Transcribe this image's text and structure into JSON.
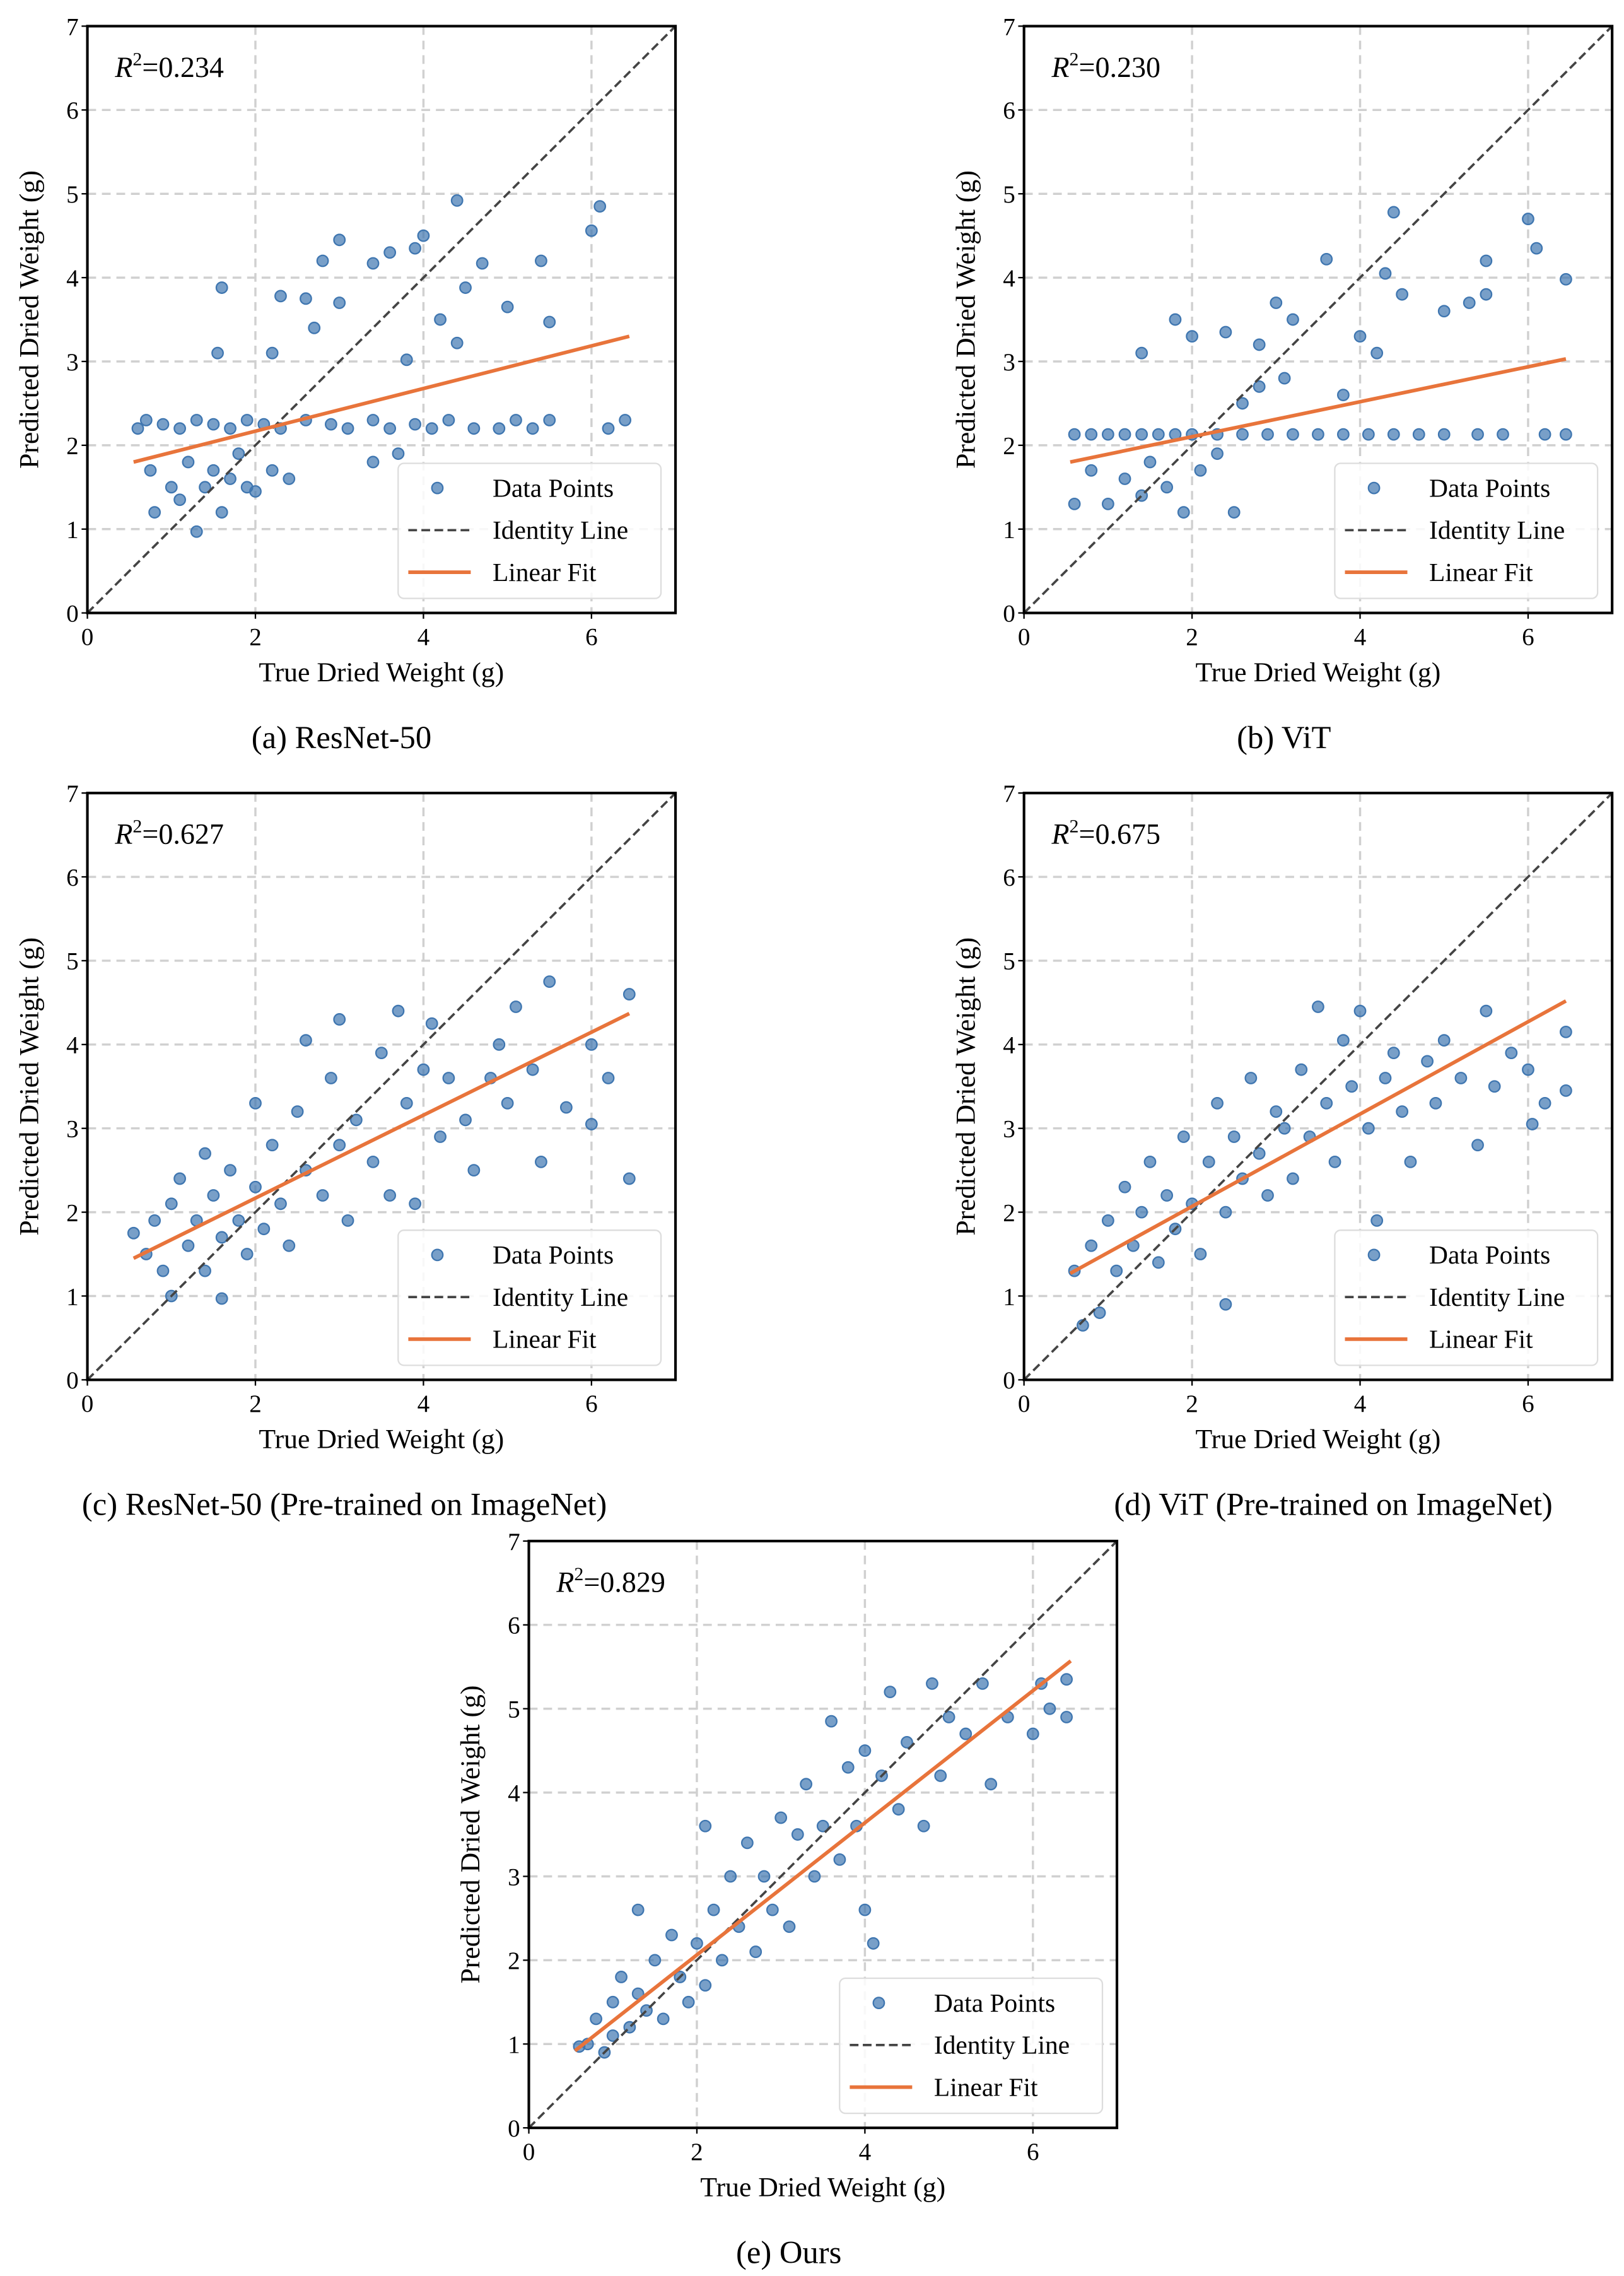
{
  "colors": {
    "points": "#3f76b0",
    "identity": "#444444",
    "fit": "#e8743b",
    "grid": "#d0d0d0"
  },
  "legend": {
    "points": "Data Points",
    "identity": "Identity Line",
    "fit": "Linear Fit"
  },
  "chart_data": [
    {
      "type": "scatter",
      "caption": "(a) ResNet-50",
      "r2_label": "R",
      "r2_sup": "2",
      "r2_value": "=0.234",
      "xlabel": "True Dried Weight (g)",
      "ylabel": "Predicted Dried Weight (g)",
      "xlim": [
        0,
        7
      ],
      "ylim": [
        0,
        7
      ],
      "xticks": [
        "0",
        "2",
        "4",
        "6"
      ],
      "yticks": [
        "0",
        "1",
        "2",
        "3",
        "4",
        "5",
        "6",
        "7"
      ],
      "legend_position": "lower-right",
      "grid": true,
      "fit": [
        [
          0.55,
          1.8
        ],
        [
          6.45,
          3.3
        ]
      ],
      "points": [
        [
          0.6,
          2.2
        ],
        [
          0.7,
          2.3
        ],
        [
          0.9,
          2.25
        ],
        [
          1.1,
          2.2
        ],
        [
          1.3,
          2.3
        ],
        [
          1.5,
          2.25
        ],
        [
          1.7,
          2.2
        ],
        [
          1.9,
          2.3
        ],
        [
          2.1,
          2.25
        ],
        [
          2.3,
          2.2
        ],
        [
          2.6,
          2.3
        ],
        [
          2.9,
          2.25
        ],
        [
          3.1,
          2.2
        ],
        [
          3.4,
          2.3
        ],
        [
          3.6,
          2.2
        ],
        [
          3.9,
          2.25
        ],
        [
          4.1,
          2.2
        ],
        [
          4.3,
          2.3
        ],
        [
          4.6,
          2.2
        ],
        [
          4.9,
          2.2
        ],
        [
          5.1,
          2.3
        ],
        [
          5.3,
          2.2
        ],
        [
          5.5,
          2.3
        ],
        [
          6.2,
          2.2
        ],
        [
          6.4,
          2.3
        ],
        [
          0.75,
          1.7
        ],
        [
          0.8,
          1.2
        ],
        [
          1.0,
          1.5
        ],
        [
          1.1,
          1.35
        ],
        [
          1.2,
          1.8
        ],
        [
          1.3,
          0.97
        ],
        [
          1.4,
          1.5
        ],
        [
          1.5,
          1.7
        ],
        [
          1.6,
          1.2
        ],
        [
          1.7,
          1.6
        ],
        [
          1.8,
          1.9
        ],
        [
          1.9,
          1.5
        ],
        [
          2.0,
          1.45
        ],
        [
          2.2,
          1.7
        ],
        [
          2.4,
          1.6
        ],
        [
          1.6,
          3.88
        ],
        [
          1.55,
          3.1
        ],
        [
          2.2,
          3.1
        ],
        [
          2.3,
          3.78
        ],
        [
          2.6,
          3.75
        ],
        [
          2.8,
          4.2
        ],
        [
          3.0,
          4.45
        ],
        [
          3.0,
          3.7
        ],
        [
          3.4,
          4.17
        ],
        [
          3.6,
          4.3
        ],
        [
          3.9,
          4.35
        ],
        [
          4.0,
          4.5
        ],
        [
          4.4,
          4.92
        ],
        [
          4.2,
          3.5
        ],
        [
          4.5,
          3.88
        ],
        [
          4.7,
          4.17
        ],
        [
          5.0,
          3.65
        ],
        [
          5.4,
          4.2
        ],
        [
          5.5,
          3.47
        ],
        [
          6.0,
          4.56
        ],
        [
          6.1,
          4.85
        ],
        [
          4.4,
          3.22
        ],
        [
          3.8,
          3.02
        ],
        [
          2.7,
          3.4
        ],
        [
          3.7,
          1.9
        ],
        [
          3.4,
          1.8
        ]
      ]
    },
    {
      "type": "scatter",
      "caption": "(b) ViT",
      "r2_label": "R",
      "r2_sup": "2",
      "r2_value": "=0.230",
      "xlabel": "True Dried Weight (g)",
      "ylabel": "Predicted Dried Weight (g)",
      "xlim": [
        0,
        7
      ],
      "ylim": [
        0,
        7
      ],
      "xticks": [
        "0",
        "2",
        "4",
        "6"
      ],
      "yticks": [
        "0",
        "1",
        "2",
        "3",
        "4",
        "5",
        "6",
        "7"
      ],
      "legend_position": "lower-right",
      "grid": true,
      "fit": [
        [
          0.55,
          1.8
        ],
        [
          6.45,
          3.03
        ]
      ],
      "points": [
        [
          0.6,
          2.13
        ],
        [
          0.8,
          2.13
        ],
        [
          1.0,
          2.13
        ],
        [
          1.2,
          2.13
        ],
        [
          1.4,
          2.13
        ],
        [
          1.6,
          2.13
        ],
        [
          1.8,
          2.13
        ],
        [
          2.0,
          2.13
        ],
        [
          2.3,
          2.13
        ],
        [
          2.6,
          2.13
        ],
        [
          2.9,
          2.13
        ],
        [
          3.2,
          2.13
        ],
        [
          3.5,
          2.13
        ],
        [
          3.8,
          2.13
        ],
        [
          4.1,
          2.13
        ],
        [
          4.4,
          2.13
        ],
        [
          4.7,
          2.13
        ],
        [
          5.0,
          2.13
        ],
        [
          5.4,
          2.13
        ],
        [
          5.7,
          2.13
        ],
        [
          6.2,
          2.13
        ],
        [
          6.45,
          2.13
        ],
        [
          0.6,
          1.3
        ],
        [
          0.8,
          1.7
        ],
        [
          1.0,
          1.3
        ],
        [
          1.2,
          1.6
        ],
        [
          1.4,
          1.4
        ],
        [
          1.5,
          1.8
        ],
        [
          1.7,
          1.5
        ],
        [
          1.9,
          1.2
        ],
        [
          2.1,
          1.7
        ],
        [
          2.3,
          1.9
        ],
        [
          2.5,
          1.2
        ],
        [
          2.6,
          2.5
        ],
        [
          2.8,
          2.7
        ],
        [
          1.4,
          3.1
        ],
        [
          1.8,
          3.5
        ],
        [
          2.0,
          3.3
        ],
        [
          2.4,
          3.35
        ],
        [
          2.8,
          3.2
        ],
        [
          3.0,
          3.7
        ],
        [
          3.2,
          3.5
        ],
        [
          3.6,
          4.22
        ],
        [
          4.0,
          3.3
        ],
        [
          4.3,
          4.05
        ],
        [
          4.4,
          4.78
        ],
        [
          4.5,
          3.8
        ],
        [
          4.2,
          3.1
        ],
        [
          5.0,
          3.6
        ],
        [
          5.3,
          3.7
        ],
        [
          5.5,
          4.2
        ],
        [
          5.5,
          3.8
        ],
        [
          6.0,
          4.7
        ],
        [
          6.1,
          4.35
        ],
        [
          6.45,
          3.98
        ],
        [
          3.8,
          2.6
        ],
        [
          3.1,
          2.8
        ]
      ]
    },
    {
      "type": "scatter",
      "caption": "(c) ResNet-50 (Pre-trained on ImageNet)",
      "r2_label": "R",
      "r2_sup": "2",
      "r2_value": "=0.627",
      "xlabel": "True Dried Weight (g)",
      "ylabel": "Predicted Dried Weight (g)",
      "xlim": [
        0,
        7
      ],
      "ylim": [
        0,
        7
      ],
      "xticks": [
        "0",
        "2",
        "4",
        "6"
      ],
      "yticks": [
        "0",
        "1",
        "2",
        "3",
        "4",
        "5",
        "6",
        "7"
      ],
      "legend_position": "lower-right",
      "grid": true,
      "fit": [
        [
          0.55,
          1.45
        ],
        [
          6.45,
          4.37
        ]
      ],
      "points": [
        [
          0.55,
          1.75
        ],
        [
          0.7,
          1.5
        ],
        [
          0.8,
          1.9
        ],
        [
          0.9,
          1.3
        ],
        [
          1.0,
          2.1
        ],
        [
          1.0,
          1.0
        ],
        [
          1.1,
          2.4
        ],
        [
          1.2,
          1.6
        ],
        [
          1.3,
          1.9
        ],
        [
          1.4,
          2.7
        ],
        [
          1.4,
          1.3
        ],
        [
          1.5,
          2.2
        ],
        [
          1.6,
          1.7
        ],
        [
          1.6,
          0.97
        ],
        [
          1.7,
          2.5
        ],
        [
          1.8,
          1.9
        ],
        [
          1.9,
          1.5
        ],
        [
          2.0,
          2.3
        ],
        [
          2.0,
          3.3
        ],
        [
          2.1,
          1.8
        ],
        [
          2.2,
          2.8
        ],
        [
          2.3,
          2.1
        ],
        [
          2.4,
          1.6
        ],
        [
          2.5,
          3.2
        ],
        [
          2.6,
          2.5
        ],
        [
          2.6,
          4.05
        ],
        [
          2.8,
          2.2
        ],
        [
          2.9,
          3.6
        ],
        [
          3.0,
          2.8
        ],
        [
          3.0,
          4.3
        ],
        [
          3.1,
          1.9
        ],
        [
          3.2,
          3.1
        ],
        [
          3.4,
          2.6
        ],
        [
          3.5,
          3.9
        ],
        [
          3.6,
          2.2
        ],
        [
          3.7,
          4.4
        ],
        [
          3.8,
          3.3
        ],
        [
          3.9,
          2.1
        ],
        [
          4.0,
          3.7
        ],
        [
          4.1,
          4.25
        ],
        [
          4.2,
          2.9
        ],
        [
          4.3,
          3.6
        ],
        [
          4.5,
          3.1
        ],
        [
          4.6,
          2.5
        ],
        [
          4.8,
          3.6
        ],
        [
          4.9,
          4.0
        ],
        [
          5.0,
          3.3
        ],
        [
          5.1,
          4.45
        ],
        [
          5.3,
          3.7
        ],
        [
          5.4,
          2.6
        ],
        [
          5.5,
          4.75
        ],
        [
          5.7,
          3.25
        ],
        [
          6.0,
          4.0
        ],
        [
          6.0,
          3.05
        ],
        [
          6.2,
          3.6
        ],
        [
          6.45,
          4.6
        ],
        [
          6.45,
          2.4
        ]
      ]
    },
    {
      "type": "scatter",
      "caption": "(d) ViT (Pre-trained on ImageNet)",
      "r2_label": "R",
      "r2_sup": "2",
      "r2_value": "=0.675",
      "xlabel": "True Dried Weight (g)",
      "ylabel": "Predicted Dried Weight (g)",
      "xlim": [
        0,
        7
      ],
      "ylim": [
        0,
        7
      ],
      "xticks": [
        "0",
        "2",
        "4",
        "6"
      ],
      "yticks": [
        "0",
        "1",
        "2",
        "3",
        "4",
        "5",
        "6",
        "7"
      ],
      "legend_position": "lower-right",
      "grid": true,
      "fit": [
        [
          0.55,
          1.27
        ],
        [
          6.45,
          4.52
        ]
      ],
      "points": [
        [
          0.6,
          1.3
        ],
        [
          0.7,
          0.65
        ],
        [
          0.8,
          1.6
        ],
        [
          0.9,
          0.8
        ],
        [
          1.0,
          1.9
        ],
        [
          1.1,
          1.3
        ],
        [
          1.2,
          2.3
        ],
        [
          1.3,
          1.6
        ],
        [
          1.4,
          2.0
        ],
        [
          1.5,
          2.6
        ],
        [
          1.6,
          1.4
        ],
        [
          1.7,
          2.2
        ],
        [
          1.8,
          1.8
        ],
        [
          1.9,
          2.9
        ],
        [
          2.0,
          2.1
        ],
        [
          2.1,
          1.5
        ],
        [
          2.2,
          2.6
        ],
        [
          2.3,
          3.3
        ],
        [
          2.4,
          2.0
        ],
        [
          2.4,
          0.9
        ],
        [
          2.5,
          2.9
        ],
        [
          2.6,
          2.4
        ],
        [
          2.7,
          3.6
        ],
        [
          2.8,
          2.7
        ],
        [
          2.9,
          2.2
        ],
        [
          3.0,
          3.2
        ],
        [
          3.1,
          3.0
        ],
        [
          3.2,
          2.4
        ],
        [
          3.3,
          3.7
        ],
        [
          3.4,
          2.9
        ],
        [
          3.5,
          4.45
        ],
        [
          3.6,
          3.3
        ],
        [
          3.7,
          2.6
        ],
        [
          3.8,
          4.05
        ],
        [
          3.9,
          3.5
        ],
        [
          4.0,
          4.4
        ],
        [
          4.1,
          3.0
        ],
        [
          4.2,
          1.9
        ],
        [
          4.3,
          3.6
        ],
        [
          4.4,
          3.9
        ],
        [
          4.5,
          3.2
        ],
        [
          4.6,
          2.6
        ],
        [
          4.8,
          3.8
        ],
        [
          4.9,
          3.3
        ],
        [
          5.0,
          4.05
        ],
        [
          5.2,
          3.6
        ],
        [
          5.4,
          2.8
        ],
        [
          5.5,
          4.4
        ],
        [
          5.6,
          3.5
        ],
        [
          5.8,
          3.9
        ],
        [
          6.0,
          3.7
        ],
        [
          6.05,
          3.05
        ],
        [
          6.2,
          3.3
        ],
        [
          6.45,
          4.15
        ],
        [
          6.45,
          3.45
        ]
      ]
    },
    {
      "type": "scatter",
      "caption": "(e) Ours",
      "r2_label": "R",
      "r2_sup": "2",
      "r2_value": "=0.829",
      "xlabel": "True Dried Weight (g)",
      "ylabel": "Predicted Dried Weight (g)",
      "xlim": [
        0,
        7
      ],
      "ylim": [
        0,
        7
      ],
      "xticks": [
        "0",
        "2",
        "4",
        "6"
      ],
      "yticks": [
        "0",
        "1",
        "2",
        "3",
        "4",
        "5",
        "6",
        "7"
      ],
      "legend_position": "lower-right",
      "grid": true,
      "fit": [
        [
          0.55,
          0.92
        ],
        [
          6.45,
          5.57
        ]
      ],
      "points": [
        [
          0.6,
          0.97
        ],
        [
          0.7,
          1.0
        ],
        [
          0.8,
          1.3
        ],
        [
          0.9,
          0.9
        ],
        [
          1.0,
          1.5
        ],
        [
          1.0,
          1.1
        ],
        [
          1.1,
          1.8
        ],
        [
          1.2,
          1.2
        ],
        [
          1.3,
          1.6
        ],
        [
          1.3,
          2.6
        ],
        [
          1.4,
          1.4
        ],
        [
          1.5,
          2.0
        ],
        [
          1.6,
          1.3
        ],
        [
          1.7,
          2.3
        ],
        [
          1.8,
          1.8
        ],
        [
          1.9,
          1.5
        ],
        [
          2.0,
          2.2
        ],
        [
          2.1,
          3.6
        ],
        [
          2.1,
          1.7
        ],
        [
          2.2,
          2.6
        ],
        [
          2.3,
          2.0
        ],
        [
          2.4,
          3.0
        ],
        [
          2.5,
          2.4
        ],
        [
          2.6,
          3.4
        ],
        [
          2.7,
          2.1
        ],
        [
          2.8,
          3.0
        ],
        [
          2.9,
          2.6
        ],
        [
          3.0,
          3.7
        ],
        [
          3.1,
          2.4
        ],
        [
          3.2,
          3.5
        ],
        [
          3.3,
          4.1
        ],
        [
          3.4,
          3.0
        ],
        [
          3.5,
          3.6
        ],
        [
          3.6,
          4.85
        ],
        [
          3.7,
          3.2
        ],
        [
          3.8,
          4.3
        ],
        [
          3.9,
          3.6
        ],
        [
          4.0,
          2.6
        ],
        [
          4.0,
          4.5
        ],
        [
          4.1,
          2.2
        ],
        [
          4.2,
          4.2
        ],
        [
          4.3,
          5.2
        ],
        [
          4.4,
          3.8
        ],
        [
          4.5,
          4.6
        ],
        [
          4.7,
          3.6
        ],
        [
          4.8,
          5.3
        ],
        [
          4.9,
          4.2
        ],
        [
          5.0,
          4.9
        ],
        [
          5.2,
          4.7
        ],
        [
          5.4,
          5.3
        ],
        [
          5.5,
          4.1
        ],
        [
          5.7,
          4.9
        ],
        [
          6.0,
          4.7
        ],
        [
          6.1,
          5.3
        ],
        [
          6.2,
          5.0
        ],
        [
          6.4,
          5.35
        ],
        [
          6.4,
          4.9
        ]
      ]
    }
  ]
}
